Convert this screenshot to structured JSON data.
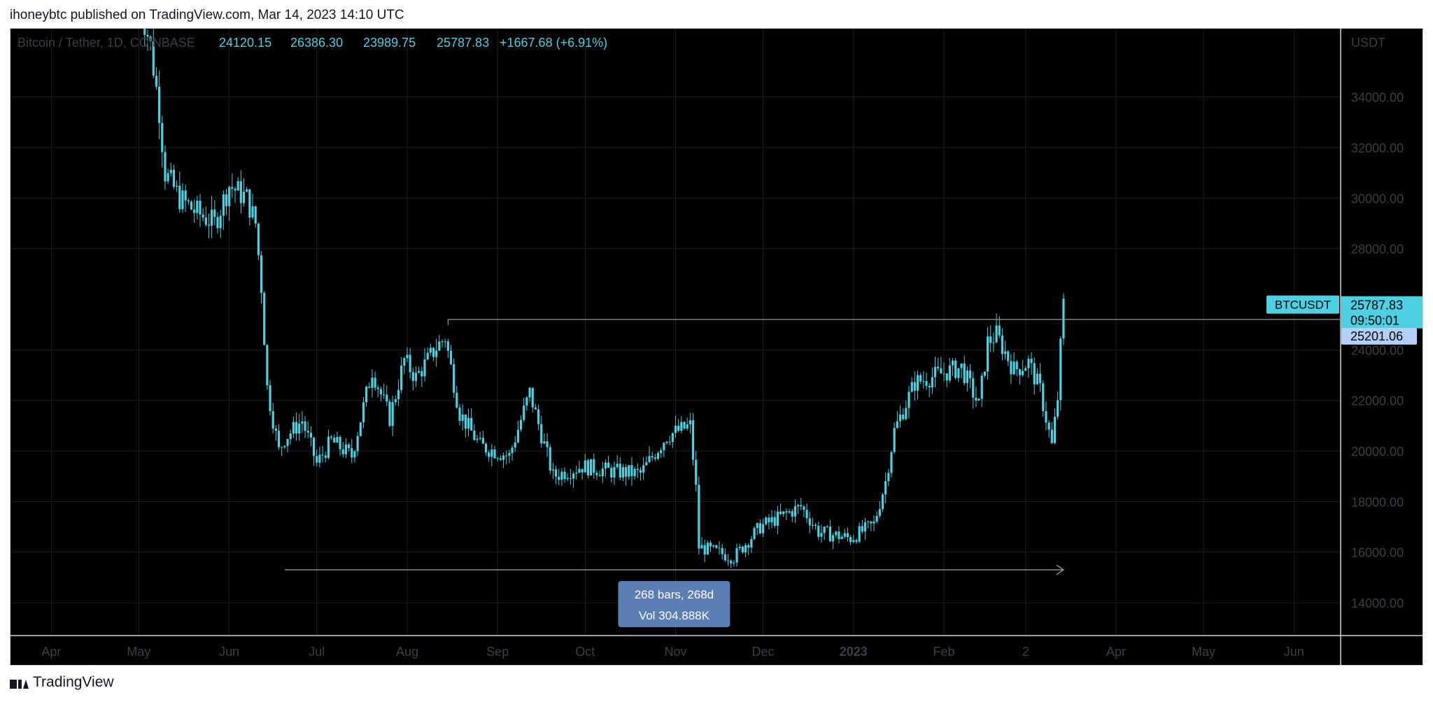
{
  "header": {
    "published": "ihoneybtc published on TradingView.com, Mar 14, 2023 14:10 UTC"
  },
  "footer": {
    "brand": "TradingView"
  },
  "colors": {
    "background": "#000000",
    "candle": "#4dd0e1",
    "grid": "#1b1f27",
    "axis_text": "#3b3f48",
    "price_label_bg": "#4dd0e1",
    "line_label_bg": "#b2d0f5",
    "measure_bg": "#5b7fb5"
  },
  "chart_data": {
    "type": "candlestick",
    "symbol_line": "Bitcoin / Tether, 1D, COINBASE",
    "ohlc": {
      "open": "24120.15",
      "high": "26386.30",
      "low": "23989.75",
      "close": "25787.83",
      "change": "+1667.68 (+6.91%)"
    },
    "y_unit": "USDT",
    "y_ticks": [
      "34000.00",
      "32000.00",
      "30000.00",
      "28000.00",
      "24000.00",
      "22000.00",
      "20000.00",
      "18000.00",
      "16000.00",
      "14000.00"
    ],
    "y_tick_values": [
      34000,
      32000,
      30000,
      28000,
      24000,
      22000,
      20000,
      18000,
      16000,
      14000
    ],
    "ylim": [
      12700,
      36700
    ],
    "x_labels": [
      "Apr",
      "May",
      "Jun",
      "Jul",
      "Aug",
      "Sep",
      "Oct",
      "Nov",
      "Dec",
      "2023",
      "Feb",
      "2",
      "Apr",
      "May",
      "Jun"
    ],
    "x_label_dates": [
      "2022-04-01",
      "2022-05-01",
      "2022-06-01",
      "2022-07-01",
      "2022-08-01",
      "2022-09-01",
      "2022-10-01",
      "2022-11-01",
      "2022-12-01",
      "2023-01-01",
      "2023-02-01",
      "2023-03-01",
      "2023-04-01",
      "2023-05-01",
      "2023-06-01"
    ],
    "xlim": [
      "2022-03-18",
      "2023-06-17"
    ],
    "price_path": [
      [
        "2022-05-01",
        38000
      ],
      [
        "2022-05-05",
        36000
      ],
      [
        "2022-05-08",
        33500
      ],
      [
        "2022-05-10",
        31000
      ],
      [
        "2022-05-15",
        30000
      ],
      [
        "2022-05-20",
        29500
      ],
      [
        "2022-05-27",
        29000
      ],
      [
        "2022-06-01",
        30500
      ],
      [
        "2022-06-07",
        30000
      ],
      [
        "2022-06-10",
        29000
      ],
      [
        "2022-06-12",
        26500
      ],
      [
        "2022-06-14",
        22500
      ],
      [
        "2022-06-18",
        20000
      ],
      [
        "2022-06-20",
        20500
      ],
      [
        "2022-06-26",
        21200
      ],
      [
        "2022-07-01",
        19500
      ],
      [
        "2022-07-06",
        20400
      ],
      [
        "2022-07-13",
        19800
      ],
      [
        "2022-07-20",
        23200
      ],
      [
        "2022-07-26",
        21300
      ],
      [
        "2022-07-31",
        23600
      ],
      [
        "2022-08-04",
        22900
      ],
      [
        "2022-08-11",
        24100
      ],
      [
        "2022-08-14",
        24500
      ],
      [
        "2022-08-19",
        21500
      ],
      [
        "2022-08-26",
        20200
      ],
      [
        "2022-09-05",
        19800
      ],
      [
        "2022-09-12",
        22300
      ],
      [
        "2022-09-20",
        19000
      ],
      [
        "2022-09-30",
        19400
      ],
      [
        "2022-10-10",
        19200
      ],
      [
        "2022-10-20",
        19100
      ],
      [
        "2022-10-29",
        20600
      ],
      [
        "2022-11-06",
        21000
      ],
      [
        "2022-11-08",
        18500
      ],
      [
        "2022-11-09",
        16200
      ],
      [
        "2022-11-21",
        15800
      ],
      [
        "2022-11-30",
        17000
      ],
      [
        "2022-12-14",
        17800
      ],
      [
        "2022-12-20",
        16800
      ],
      [
        "2022-12-31",
        16550
      ],
      [
        "2023-01-08",
        17100
      ],
      [
        "2023-01-12",
        18800
      ],
      [
        "2023-01-15",
        20800
      ],
      [
        "2023-01-22",
        22700
      ],
      [
        "2023-02-01",
        23100
      ],
      [
        "2023-02-07",
        23300
      ],
      [
        "2023-02-13",
        21800
      ],
      [
        "2023-02-16",
        24300
      ],
      [
        "2023-02-19",
        24600
      ],
      [
        "2023-02-25",
        23200
      ],
      [
        "2023-03-02",
        23500
      ],
      [
        "2023-03-06",
        22400
      ],
      [
        "2023-03-10",
        20200
      ],
      [
        "2023-03-12",
        22100
      ],
      [
        "2023-03-13",
        24100
      ],
      [
        "2023-03-14",
        25787
      ]
    ],
    "last_price": {
      "symbol": "BTCUSDT",
      "value": "25787.83",
      "countdown": "09:50:01",
      "y": 25787.83
    },
    "hline": {
      "value": "25201.06",
      "y": 25201.06,
      "from": "2022-08-15"
    },
    "date_range_tool": {
      "from": "2022-06-20",
      "to": "2023-03-14",
      "y": 15300,
      "label_line1": "268 bars, 268d",
      "label_line2": "Vol 304.888K"
    }
  }
}
